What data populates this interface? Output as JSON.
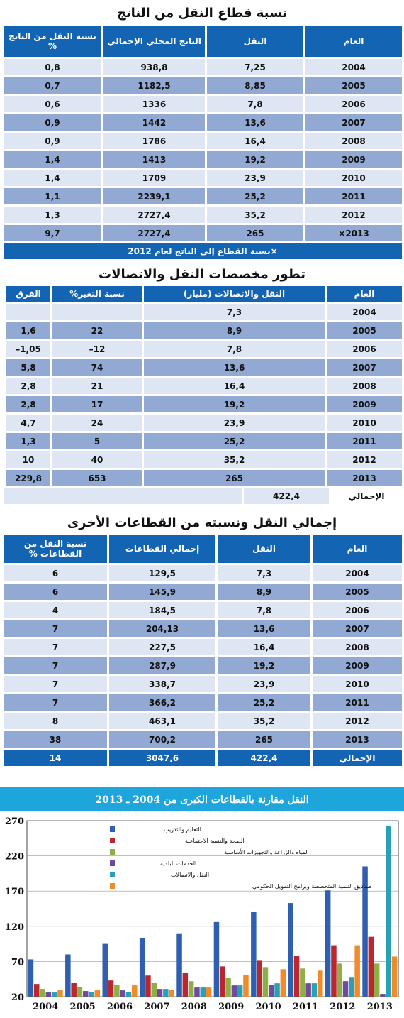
{
  "table1": {
    "title": "نسبة قطاع النقل من الناتج",
    "headers": [
      "العام",
      "النقل",
      "الناتج المحلي الإجمالي",
      "نسبة النقل من الناتج %"
    ],
    "rows": [
      [
        "2004",
        "7,25",
        "938,8",
        "0,8"
      ],
      [
        "2005",
        "8,85",
        "1182,5",
        "0,7"
      ],
      [
        "2006",
        "7,8",
        "1336",
        "0,6"
      ],
      [
        "2007",
        "13,6",
        "1442",
        "0,9"
      ],
      [
        "2008",
        "16,4",
        "1786",
        "0,9"
      ],
      [
        "2009",
        "19,2",
        "1413",
        "1,4"
      ],
      [
        "2010",
        "23,9",
        "1709",
        "1,4"
      ],
      [
        "2011",
        "25,2",
        "2239,1",
        "1,1"
      ],
      [
        "2012",
        "35,2",
        "2727,4",
        "1,3"
      ],
      [
        "2013×",
        "265",
        "2727,4",
        "9,7"
      ]
    ],
    "note": "×نسبة القطاع إلى الناتج لعام 2012"
  },
  "table2": {
    "title": "تطور مخصصات النقل والاتصالات",
    "headers": [
      "العام",
      "النقل والاتصالات (مليار)",
      "نسبة التغير%",
      "الفرق"
    ],
    "rows": [
      [
        "2004",
        "7,3",
        "",
        ""
      ],
      [
        "2005",
        "8,9",
        "22",
        "1,6"
      ],
      [
        "2006",
        "7,8",
        "12–",
        "1,05–"
      ],
      [
        "2007",
        "13,6",
        "74",
        "5,8"
      ],
      [
        "2008",
        "16,4",
        "21",
        "2,8"
      ],
      [
        "2009",
        "19,2",
        "17",
        "2,8"
      ],
      [
        "2010",
        "23,9",
        "24",
        "4,7"
      ],
      [
        "2011",
        "25,2",
        "5",
        "1,3"
      ],
      [
        "2012",
        "35,2",
        "40",
        "10"
      ],
      [
        "2013",
        "265",
        "653",
        "229,8"
      ]
    ],
    "total_label": "الإجمالي",
    "total_value": "422,4"
  },
  "table3": {
    "title": "إجمالي النقل ونسبته من القطاعات الأخرى",
    "headers": [
      "العام",
      "النقل",
      "إجمالي القطاعات",
      "نسبة النقل من القطاعات %"
    ],
    "rows": [
      [
        "2004",
        "7,3",
        "129,5",
        "6"
      ],
      [
        "2005",
        "8,9",
        "145,9",
        "6"
      ],
      [
        "2006",
        "7,8",
        "184,5",
        "4"
      ],
      [
        "2007",
        "13,6",
        "204,13",
        "7"
      ],
      [
        "2008",
        "16,4",
        "227,5",
        "7"
      ],
      [
        "2009",
        "19,2",
        "287,9",
        "7"
      ],
      [
        "2010",
        "23,9",
        "338,7",
        "7"
      ],
      [
        "2011",
        "25,2",
        "366,2",
        "7"
      ],
      [
        "2012",
        "35,2",
        "463,1",
        "8"
      ],
      [
        "2013",
        "265",
        "700,2",
        "38"
      ]
    ],
    "total": [
      "الإجمالي",
      "422,4",
      "3047,6",
      "14"
    ]
  },
  "chart_data": {
    "type": "bar",
    "title": "النقل مقارنة بالقطاعات الكبرى من 2004 ـ 2013",
    "categories": [
      "2004",
      "2005",
      "2006",
      "2007",
      "2008",
      "2009",
      "2010",
      "2011",
      "2012",
      "2013"
    ],
    "ylim": [
      20,
      270
    ],
    "yticks": [
      "20",
      "70",
      "120",
      "170",
      "220",
      "270"
    ],
    "legend_position": "top-left",
    "series": [
      {
        "name": "التعليم والتدريب",
        "color": "#2f5fae",
        "values": [
          73,
          80,
          95,
          103,
          110,
          126,
          141,
          153,
          171,
          205
        ]
      },
      {
        "name": "الصحة والتنمية الاجتماعية",
        "color": "#b8282e",
        "values": [
          38,
          40,
          43,
          50,
          54,
          63,
          71,
          78,
          93,
          105
        ]
      },
      {
        "name": "المياه والزراعة والتجهيزات الأساسية",
        "color": "#8fae48",
        "values": [
          31,
          34,
          37,
          40,
          42,
          47,
          62,
          60,
          67,
          67
        ]
      },
      {
        "name": "الخدمات البلدية",
        "color": "#6f4c9b",
        "values": [
          27,
          28,
          29,
          31,
          33,
          36,
          37,
          39,
          42,
          24
        ]
      },
      {
        "name": "النقل والاتصالات",
        "color": "#2aa0b4",
        "values": [
          26,
          27,
          27,
          31,
          33,
          36,
          39,
          39,
          48,
          262
        ]
      },
      {
        "name": "صناديق التنمية المتخصصة وبرامج التمويل الحكومي",
        "color": "#f08a2a",
        "values": [
          29,
          29,
          36,
          30,
          33,
          51,
          59,
          57,
          93,
          77
        ]
      }
    ]
  }
}
